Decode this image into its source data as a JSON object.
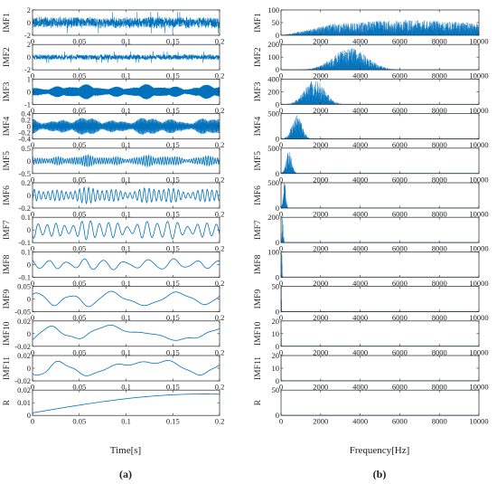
{
  "figure": {
    "line_color": "#0072BD",
    "panel_labels": {
      "left": "(a)",
      "right": "(b)"
    }
  },
  "chart_data": [
    {
      "type": "line",
      "panel": "a",
      "xlabel": "Time[s]",
      "xlim": [
        0,
        0.2
      ],
      "xticks": [
        0,
        0.05,
        0.1,
        0.15,
        0.2
      ],
      "xtick_labels": [
        "0",
        "0.05",
        "0.1",
        "0.15",
        "0.2"
      ],
      "grid": false,
      "series": [
        {
          "name": "IMF1",
          "ylim": [
            -2,
            2
          ],
          "yticks": [
            -2,
            0,
            2
          ],
          "ytick_labels": [
            "-2",
            "0",
            "2"
          ],
          "signal": "noise",
          "amplitude": 1.0,
          "peak": 1.7
        },
        {
          "name": "IMF2",
          "ylim": [
            -2,
            2
          ],
          "yticks": [
            -2,
            0,
            2
          ],
          "ytick_labels": [
            "-2",
            "0",
            "2"
          ],
          "signal": "noise",
          "amplitude": 0.5,
          "peak": 0.9
        },
        {
          "name": "IMF3",
          "ylim": [
            -1,
            1
          ],
          "yticks": [
            -1,
            0,
            1
          ],
          "ytick_labels": [
            "-1",
            "0",
            "1"
          ],
          "signal": "bursty_oscillation",
          "amplitude": 0.5,
          "frequency_hz": 1700
        },
        {
          "name": "IMF4",
          "ylim": [
            -0.4,
            0.4
          ],
          "yticks": [
            -0.4,
            -0.2,
            0,
            0.2,
            0.4
          ],
          "ytick_labels": [
            "-0.4",
            "-0.2",
            "0",
            "0.2",
            "0.4"
          ],
          "signal": "bursty_oscillation",
          "amplitude": 0.25,
          "frequency_hz": 800
        },
        {
          "name": "IMF5",
          "ylim": [
            -0.5,
            0.5
          ],
          "yticks": [
            -0.5,
            0,
            0.5
          ],
          "ytick_labels": [
            "-0.5",
            "0",
            "0.5"
          ],
          "signal": "bursty_oscillation",
          "amplitude": 0.2,
          "frequency_hz": 400
        },
        {
          "name": "IMF6",
          "ylim": [
            -0.2,
            0.2
          ],
          "yticks": [
            -0.2,
            0,
            0.2
          ],
          "ytick_labels": [
            "-0.2",
            "0",
            "0.2"
          ],
          "signal": "oscillation",
          "amplitude": 0.13,
          "frequency_hz": 200
        },
        {
          "name": "IMF7",
          "ylim": [
            -0.1,
            0.1
          ],
          "yticks": [
            -0.1,
            0,
            0.1
          ],
          "ytick_labels": [
            "-0.1",
            "0",
            "0.1"
          ],
          "signal": "oscillation",
          "amplitude": 0.08,
          "frequency_hz": 100
        },
        {
          "name": "IMF8",
          "ylim": [
            -0.1,
            0.1
          ],
          "yticks": [
            -0.1,
            0,
            0.1
          ],
          "ytick_labels": [
            "-0.1",
            "0",
            "0.1"
          ],
          "signal": "oscillation",
          "amplitude": 0.05,
          "frequency_hz": 45
        },
        {
          "name": "IMF9",
          "ylim": [
            -0.05,
            0.05
          ],
          "yticks": [
            -0.05,
            0,
            0.05
          ],
          "ytick_labels": [
            "-0.05",
            "0",
            "0.05"
          ],
          "signal": "oscillation",
          "amplitude": 0.035,
          "frequency_hz": 20
        },
        {
          "name": "IMF10",
          "ylim": [
            -0.02,
            0.02
          ],
          "yticks": [
            -0.02,
            0,
            0.02
          ],
          "ytick_labels": [
            "-0.02",
            "0",
            "0.02"
          ],
          "signal": "oscillation",
          "amplitude": 0.015,
          "frequency_hz": 12
        },
        {
          "name": "IMF11",
          "ylim": [
            -0.02,
            0.02
          ],
          "yticks": [
            -0.02,
            0,
            0.02
          ],
          "ytick_labels": [
            "-0.02",
            "0",
            "0.02"
          ],
          "signal": "oscillation",
          "amplitude": 0.016,
          "frequency_hz": 12.5
        },
        {
          "name": "R",
          "ylim": [
            0,
            0.02
          ],
          "yticks": [
            0,
            0.01,
            0.02
          ],
          "ytick_labels": [
            "0",
            "0.01",
            "0.02"
          ],
          "signal": "trend",
          "start": 0.002,
          "end": 0.018
        }
      ]
    },
    {
      "type": "area",
      "panel": "b",
      "xlabel": "Frequency[Hz]",
      "xlim": [
        0,
        10000
      ],
      "xticks": [
        0,
        2000,
        4000,
        6000,
        8000,
        10000
      ],
      "xtick_labels": [
        "0",
        "2000",
        "4000",
        "6000",
        "8000",
        "10000"
      ],
      "grid": false,
      "series": [
        {
          "name": "IMF1",
          "ylim": [
            0,
            100
          ],
          "yticks": [
            0,
            50,
            100
          ],
          "ytick_labels": [
            "0",
            "50",
            "100"
          ],
          "center_hz": 6500,
          "width_hz": 3000,
          "peak": 45,
          "spectrum": "broadband_high"
        },
        {
          "name": "IMF2",
          "ylim": [
            0,
            200
          ],
          "yticks": [
            0,
            100,
            200
          ],
          "ytick_labels": [
            "0",
            "100",
            "200"
          ],
          "center_hz": 3500,
          "width_hz": 1200,
          "peak": 130
        },
        {
          "name": "IMF3",
          "ylim": [
            0,
            400
          ],
          "yticks": [
            0,
            200,
            400
          ],
          "ytick_labels": [
            "0",
            "200",
            "400"
          ],
          "center_hz": 1700,
          "width_hz": 700,
          "peak": 300
        },
        {
          "name": "IMF4",
          "ylim": [
            0,
            500
          ],
          "yticks": [
            0,
            500
          ],
          "ytick_labels": [
            "0",
            "500"
          ],
          "center_hz": 800,
          "width_hz": 350,
          "peak": 360
        },
        {
          "name": "IMF5",
          "ylim": [
            0,
            500
          ],
          "yticks": [
            0,
            500
          ],
          "ytick_labels": [
            "0",
            "500"
          ],
          "center_hz": 400,
          "width_hz": 200,
          "peak": 330
        },
        {
          "name": "IMF6",
          "ylim": [
            0,
            500
          ],
          "yticks": [
            0,
            500
          ],
          "ytick_labels": [
            "0",
            "500"
          ],
          "center_hz": 180,
          "width_hz": 90,
          "peak": 460
        },
        {
          "name": "IMF7",
          "ylim": [
            0,
            200
          ],
          "yticks": [
            0,
            200
          ],
          "ytick_labels": [
            "0",
            "200"
          ],
          "center_hz": 90,
          "width_hz": 45,
          "peak": 160
        },
        {
          "name": "IMF8",
          "ylim": [
            0,
            100
          ],
          "yticks": [
            0,
            100
          ],
          "ytick_labels": [
            "0",
            "100"
          ],
          "center_hz": 40,
          "width_hz": 20,
          "peak": 80
        },
        {
          "name": "IMF9",
          "ylim": [
            0,
            50
          ],
          "yticks": [
            0,
            50
          ],
          "ytick_labels": [
            "0",
            "50"
          ],
          "center_hz": 20,
          "width_hz": 10,
          "peak": 48
        },
        {
          "name": "IMF10",
          "ylim": [
            0,
            20
          ],
          "yticks": [
            0,
            10,
            20
          ],
          "ytick_labels": [
            "0",
            "10",
            "20"
          ],
          "center_hz": 12,
          "width_hz": 6,
          "peak": 18
        },
        {
          "name": "IMF11",
          "ylim": [
            0,
            20
          ],
          "yticks": [
            0,
            10,
            20
          ],
          "ytick_labels": [
            "0",
            "10",
            "20"
          ],
          "center_hz": 10,
          "width_hz": 5,
          "peak": 19
        },
        {
          "name": "R",
          "ylim": [
            0,
            50
          ],
          "yticks": [
            0,
            50
          ],
          "ytick_labels": [
            "0",
            "50"
          ],
          "center_hz": 5,
          "width_hz": 3,
          "peak": 48
        }
      ]
    }
  ]
}
